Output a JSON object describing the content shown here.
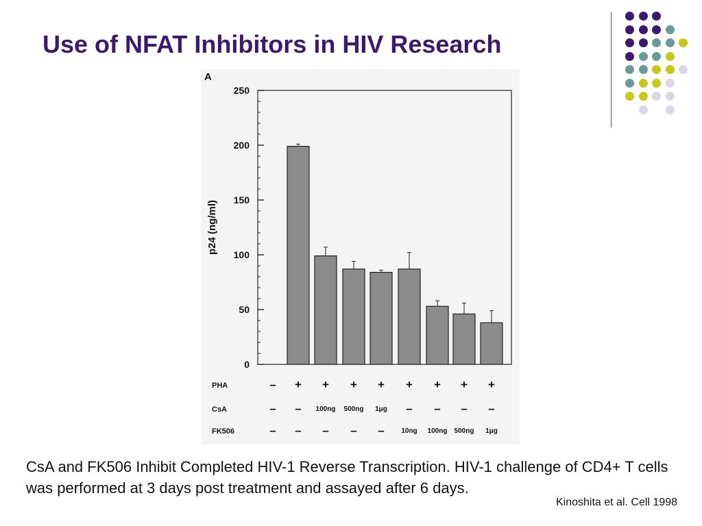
{
  "slide": {
    "title": "Use of NFAT Inhibitors in HIV Research",
    "caption": "CsA and FK506 Inhibit Completed HIV-1 Reverse Transcription. HIV-1 challenge of CD4+ T cells was performed at 3 days post treatment and assayed after 6 days.",
    "citation": "Kinoshita et al. Cell 1998",
    "dot_colors": [
      "#3b1a6e",
      "#6a9a9a",
      "#c8c81a",
      "#d8d8e8"
    ]
  },
  "chart_data": {
    "type": "bar",
    "panel_label": "A",
    "ylabel": "p24  (ng/ml)",
    "ylim": [
      0,
      250
    ],
    "yticks": [
      0,
      50,
      100,
      150,
      200,
      250
    ],
    "values": [
      0,
      199,
      99,
      87,
      84,
      87,
      53,
      46,
      38
    ],
    "errors": [
      0,
      2,
      8,
      7,
      2,
      15,
      5,
      10,
      11
    ],
    "bar_color": "#8c8c8c",
    "rows": [
      {
        "label": "PHA",
        "cells": [
          "–",
          "+",
          "+",
          "+",
          "+",
          "+",
          "+",
          "+",
          "+"
        ]
      },
      {
        "label": "CsA",
        "cells": [
          "–",
          "–",
          "100ng",
          "500ng",
          "1μg",
          "–",
          "–",
          "–",
          "–"
        ]
      },
      {
        "label": "FK506",
        "cells": [
          "–",
          "–",
          "–",
          "–",
          "–",
          "10ng",
          "100ng",
          "500ng",
          "1μg"
        ]
      }
    ]
  }
}
